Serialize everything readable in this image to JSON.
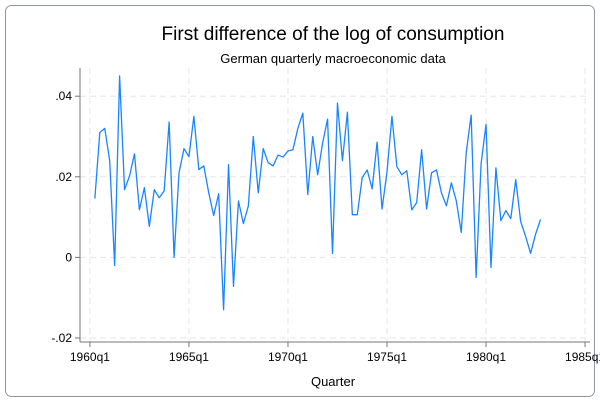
{
  "chart_data": {
    "type": "line",
    "title": "First difference of the log of consumption",
    "subtitle": "German quarterly macroeconomic data",
    "x_label": "Quarter",
    "x": [
      "1960q2",
      "1960q3",
      "1960q4",
      "1961q1",
      "1961q2",
      "1961q3",
      "1961q4",
      "1962q1",
      "1962q2",
      "1962q3",
      "1962q4",
      "1963q1",
      "1963q2",
      "1963q3",
      "1963q4",
      "1964q1",
      "1964q2",
      "1964q3",
      "1964q4",
      "1965q1",
      "1965q2",
      "1965q3",
      "1965q4",
      "1966q1",
      "1966q2",
      "1966q3",
      "1966q4",
      "1967q1",
      "1967q2",
      "1967q3",
      "1967q4",
      "1968q1",
      "1968q2",
      "1968q3",
      "1968q4",
      "1969q1",
      "1969q2",
      "1969q3",
      "1969q4",
      "1970q1",
      "1970q2",
      "1970q3",
      "1970q4",
      "1971q1",
      "1971q2",
      "1971q3",
      "1971q4",
      "1972q1",
      "1972q2",
      "1972q3",
      "1972q4",
      "1973q1",
      "1973q2",
      "1973q3",
      "1973q4",
      "1974q1",
      "1974q2",
      "1974q3",
      "1974q4",
      "1975q1",
      "1975q2",
      "1975q3",
      "1975q4",
      "1976q1",
      "1976q2",
      "1976q3",
      "1976q4",
      "1977q1",
      "1977q2",
      "1977q3",
      "1977q4",
      "1978q1",
      "1978q2",
      "1978q3",
      "1978q4",
      "1979q1",
      "1979q2",
      "1979q3",
      "1979q4",
      "1980q1",
      "1980q2",
      "1980q3",
      "1980q4",
      "1981q1",
      "1981q2",
      "1981q3",
      "1981q4",
      "1982q1",
      "1982q2",
      "1982q3",
      "1982q4"
    ],
    "values": [
      0.0146,
      0.031,
      0.032,
      0.024,
      -0.002,
      0.045,
      0.0168,
      0.0202,
      0.0257,
      0.0118,
      0.0173,
      0.0077,
      0.0168,
      0.0148,
      0.0165,
      0.0336,
      0.0,
      0.021,
      0.027,
      0.025,
      0.035,
      0.0218,
      0.0227,
      0.016,
      0.0104,
      0.0158,
      -0.013,
      0.023,
      -0.0072,
      0.014,
      0.0084,
      0.0128,
      0.03,
      0.016,
      0.027,
      0.0235,
      0.0227,
      0.0254,
      0.0249,
      0.0264,
      0.0267,
      0.032,
      0.0358,
      0.0156,
      0.03,
      0.0205,
      0.0284,
      0.0343,
      0.001,
      0.0383,
      0.024,
      0.036,
      0.0106,
      0.0106,
      0.0198,
      0.0217,
      0.017,
      0.0286,
      0.012,
      0.0212,
      0.035,
      0.0225,
      0.0205,
      0.0215,
      0.0118,
      0.0136,
      0.0267,
      0.012,
      0.021,
      0.0217,
      0.016,
      0.0128,
      0.0185,
      0.014,
      0.0062,
      0.026,
      0.0353,
      -0.005,
      0.0232,
      0.033,
      -0.0025,
      0.0222,
      0.0091,
      0.0116,
      0.0096,
      0.0193,
      0.0089,
      0.0052,
      0.001,
      0.0057,
      0.0094
    ],
    "color": "#1a85ff",
    "xlim": [
      "1959q3",
      "1985q2"
    ],
    "xticks": [
      "1960q1",
      "1965q1",
      "1970q1",
      "1975q1",
      "1980q1",
      "1985q1"
    ],
    "ylim": [
      -0.021,
      0.047
    ],
    "yticks": [
      {
        "value": -0.02,
        "label": "-.02"
      },
      0,
      {
        "value": 0.02,
        "label": ".02"
      },
      {
        "value": 0.04,
        "label": ".04"
      }
    ],
    "grid": true
  }
}
